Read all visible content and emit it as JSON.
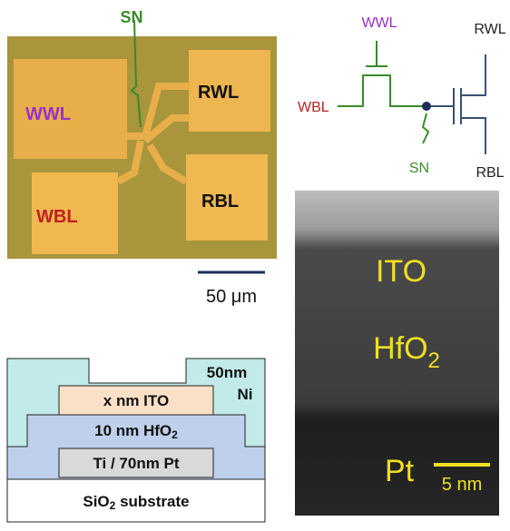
{
  "micrograph": {
    "sn": "SN",
    "wwl": "WWL",
    "rwl": "RWL",
    "wbl": "WBL",
    "rbl": "RBL",
    "scale": "50 μm"
  },
  "circuit": {
    "wwl": "WWL",
    "wbl": "WBL",
    "rwl": "RWL",
    "rbl": "RBL",
    "sn": "SN"
  },
  "stack": {
    "ni_1": "50nm",
    "ni_2": "Ni",
    "ito": "x nm ITO",
    "hfo2": {
      "base": "10 nm HfO",
      "sub": "2"
    },
    "pt": "Ti / 70nm Pt",
    "substrate": {
      "base": "SiO",
      "sub": "2",
      "rest": " substrate"
    }
  },
  "tem": {
    "ito": "ITO",
    "hfo2": {
      "base": "HfO",
      "sub": "2"
    },
    "pt": "Pt",
    "scale": "5 nm"
  }
}
